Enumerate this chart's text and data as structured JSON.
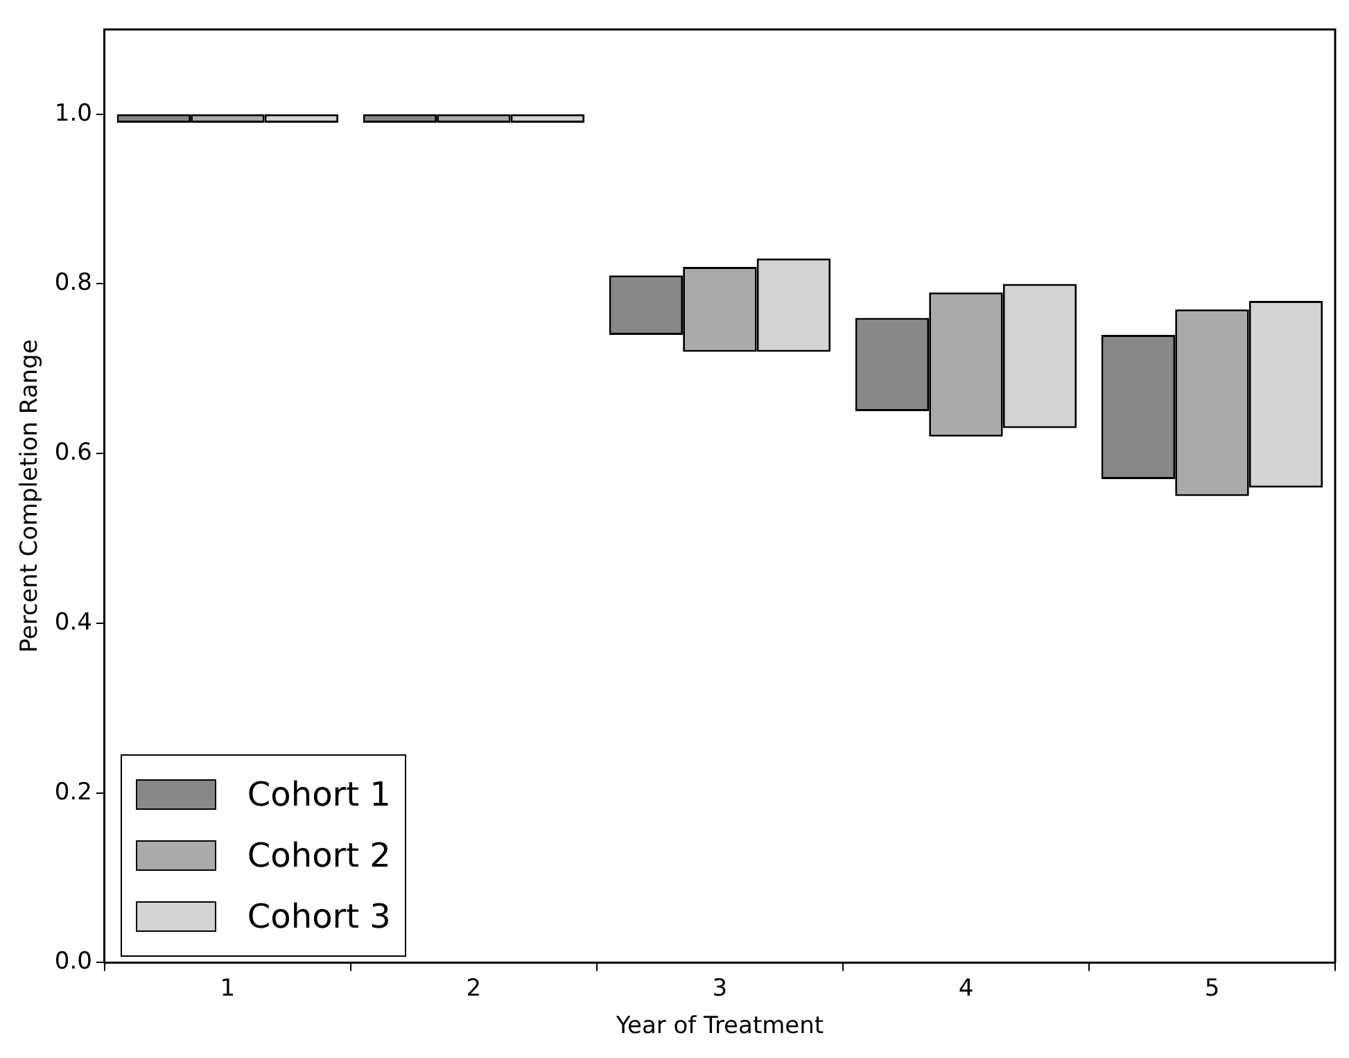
{
  "chart_data": {
    "type": "bar",
    "xlabel": "Year of Treatment",
    "ylabel": "Percent Completion Range",
    "categories": [
      "1",
      "2",
      "3",
      "4",
      "5"
    ],
    "series": [
      {
        "name": "Cohort 1",
        "color": "#888888",
        "base": [
          0.99,
          0.99,
          0.74,
          0.65,
          0.57
        ],
        "values": [
          0.01,
          0.01,
          0.07,
          0.11,
          0.17
        ]
      },
      {
        "name": "Cohort 2",
        "color": "#aaaaaa",
        "base": [
          0.99,
          0.99,
          0.72,
          0.62,
          0.55
        ],
        "values": [
          0.01,
          0.01,
          0.1,
          0.17,
          0.22
        ]
      },
      {
        "name": "Cohort 3",
        "color": "#d3d3d3",
        "base": [
          0.99,
          0.99,
          0.72,
          0.63,
          0.56
        ],
        "values": [
          0.01,
          0.01,
          0.11,
          0.17,
          0.22
        ]
      }
    ],
    "ylim": [
      0,
      1.1
    ],
    "yticks": [
      {
        "value": 0,
        "label": "0.0"
      },
      {
        "value": 0.2,
        "label": "0.2"
      },
      {
        "value": 0.4,
        "label": "0.4"
      },
      {
        "value": 0.6,
        "label": "0.6"
      },
      {
        "value": 0.8,
        "label": "0.8"
      },
      {
        "value": 1,
        "label": "1.0"
      }
    ],
    "grid": false,
    "legend": "bottom left"
  }
}
